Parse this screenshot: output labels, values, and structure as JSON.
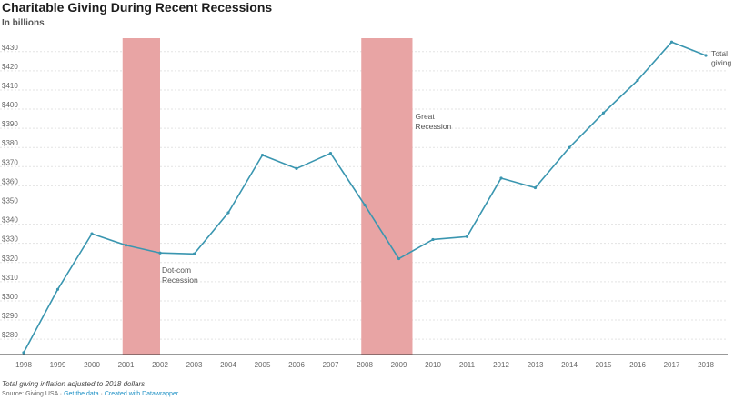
{
  "chart_data": {
    "type": "line",
    "title": "Charitable Giving During Recent Recessions",
    "subtitle": "In billions",
    "x": [
      1998,
      1999,
      2000,
      2001,
      2002,
      2003,
      2004,
      2005,
      2006,
      2007,
      2008,
      2009,
      2010,
      2011,
      2012,
      2013,
      2014,
      2015,
      2016,
      2017,
      2018
    ],
    "series": [
      {
        "name": "Total giving",
        "color": "#3a96b0",
        "values": [
          273,
          306,
          335,
          329,
          325,
          324.5,
          346,
          376,
          369,
          377,
          350,
          322,
          332,
          333.5,
          364,
          359,
          380,
          398,
          415,
          435,
          428
        ]
      }
    ],
    "yticks": [
      "$280",
      "$290",
      "$300",
      "$310",
      "$320",
      "$330",
      "$340",
      "$350",
      "$360",
      "$370",
      "$380",
      "$390",
      "$400",
      "$410",
      "$420",
      "$430"
    ],
    "ylim": [
      272,
      437
    ],
    "grid": true,
    "recessions": [
      {
        "label_line1": "Dot-com",
        "label_line2": "Recession",
        "start": 2000.9,
        "end": 2002.0,
        "color": "#e8a4a4"
      },
      {
        "label_line1": "Great",
        "label_line2": "Recession",
        "start": 2007.9,
        "end": 2009.4,
        "color": "#e8a4a4"
      }
    ],
    "end_label_line1": "Total",
    "end_label_line2": "giving"
  },
  "footer": {
    "note": "Total giving inflation adjusted to 2018 dollars",
    "source_prefix": "Source: Giving USA · ",
    "source_link1": "Get the data",
    "source_sep": " · ",
    "source_link2": "Created with Datawrapper"
  }
}
